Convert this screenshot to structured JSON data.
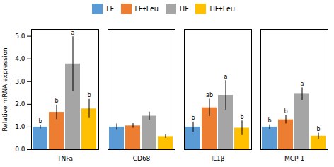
{
  "chart_data": {
    "type": "bar",
    "categories": [
      "TNFa",
      "CD68",
      "IL1β",
      "MCP-1"
    ],
    "series": [
      {
        "name": "LF",
        "color": "#5B9BD5",
        "values": [
          1.0,
          1.0,
          1.0,
          1.0
        ],
        "errors": [
          0.08,
          0.14,
          0.22,
          0.1
        ],
        "annotations": [
          "b",
          null,
          "b",
          "b"
        ]
      },
      {
        "name": "LF+Leu",
        "color": "#ED7D31",
        "values": [
          1.65,
          1.05,
          1.85,
          1.32
        ],
        "errors": [
          0.32,
          0.1,
          0.38,
          0.18
        ],
        "annotations": [
          "b",
          null,
          "ab",
          "b"
        ]
      },
      {
        "name": "HF",
        "color": "#A5A5A5",
        "values": [
          3.78,
          1.48,
          2.4,
          2.45
        ],
        "errors": [
          1.2,
          0.18,
          0.65,
          0.28
        ],
        "annotations": [
          "a",
          null,
          "a",
          "a"
        ]
      },
      {
        "name": "HF+Leu",
        "color": "#FFC000",
        "values": [
          1.8,
          0.58,
          0.95,
          0.6
        ],
        "errors": [
          0.42,
          0.08,
          0.32,
          0.13
        ],
        "annotations": [
          "b",
          null,
          "b",
          "b"
        ]
      }
    ],
    "ylabel": "Relative mRNA expression",
    "ylim": [
      0,
      5.3
    ],
    "yticks": [
      {
        "value": 0,
        "label": "0.0"
      },
      {
        "value": 1,
        "label": "1.0"
      },
      {
        "value": 2,
        "label": "2.0"
      },
      {
        "value": 3,
        "label": "3.0"
      },
      {
        "value": 4,
        "label": "4.0"
      },
      {
        "value": 5,
        "label": "5.0"
      }
    ],
    "grid": false,
    "legend": "top"
  }
}
